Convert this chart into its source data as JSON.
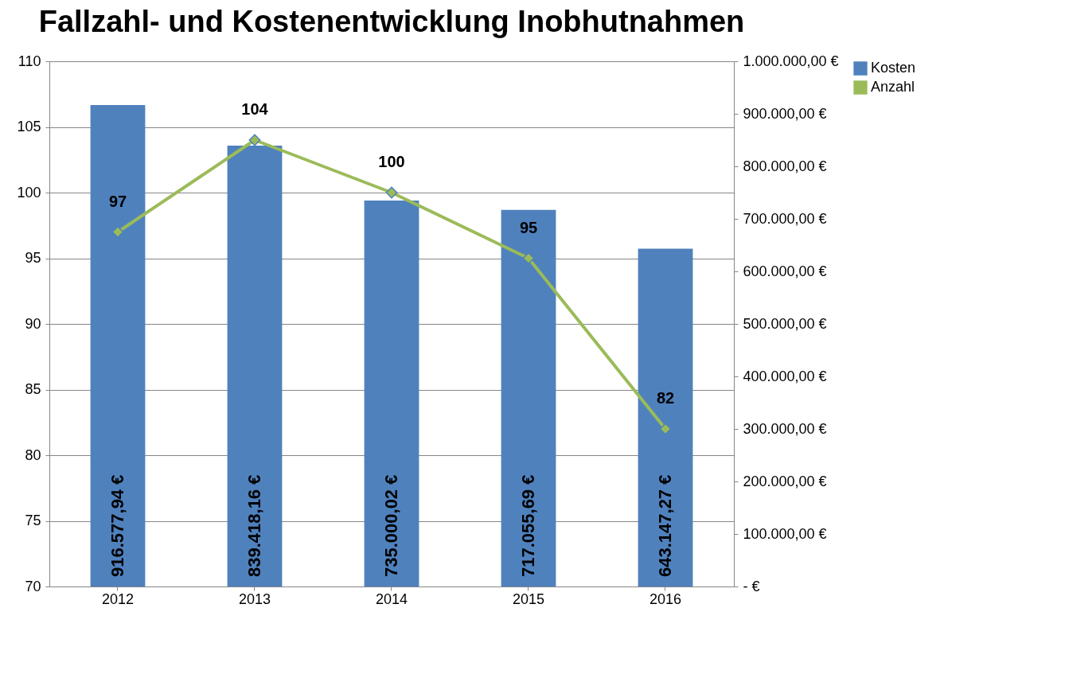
{
  "chart_data": {
    "type": "bar",
    "title": "Fallzahl- und Kostenentwicklung Inobhutnahmen",
    "categories": [
      "2012",
      "2013",
      "2014",
      "2015",
      "2016"
    ],
    "series": [
      {
        "name": "Kosten",
        "axis": "y2",
        "color": "#4f81bd",
        "values": [
          916577.94,
          839418.16,
          735000.02,
          717055.69,
          643147.27
        ],
        "value_labels": [
          "916.577,94 €",
          "839.418,16 €",
          "735.000,02 €",
          "717.055,69 €",
          "643.147,27 €"
        ]
      },
      {
        "name": "Anzahl",
        "type": "line",
        "axis": "y",
        "color": "#9bbb59",
        "values": [
          97,
          104,
          100,
          95,
          82
        ],
        "value_labels": [
          "97",
          "104",
          "100",
          "95",
          "82"
        ]
      }
    ],
    "ylim": [
      70,
      110
    ],
    "yticks": [
      70,
      75,
      80,
      85,
      90,
      95,
      100,
      105,
      110
    ],
    "y2lim": [
      0,
      1000000
    ],
    "y2ticks": [
      {
        "value": 0,
        "label": "-   €"
      },
      {
        "value": 100000,
        "label": "100.000,00 €"
      },
      {
        "value": 200000,
        "label": "200.000,00 €"
      },
      {
        "value": 300000,
        "label": "300.000,00 €"
      },
      {
        "value": 400000,
        "label": "400.000,00 €"
      },
      {
        "value": 500000,
        "label": "500.000,00 €"
      },
      {
        "value": 600000,
        "label": "600.000,00 €"
      },
      {
        "value": 700000,
        "label": "700.000,00 €"
      },
      {
        "value": 800000,
        "label": "800.000,00 €"
      },
      {
        "value": 900000,
        "label": "900.000,00 €"
      },
      {
        "value": 1000000,
        "label": "1.000.000,00 €"
      }
    ],
    "grid": "y",
    "legend": "right",
    "marker": "diamond",
    "line_style": "solid"
  }
}
